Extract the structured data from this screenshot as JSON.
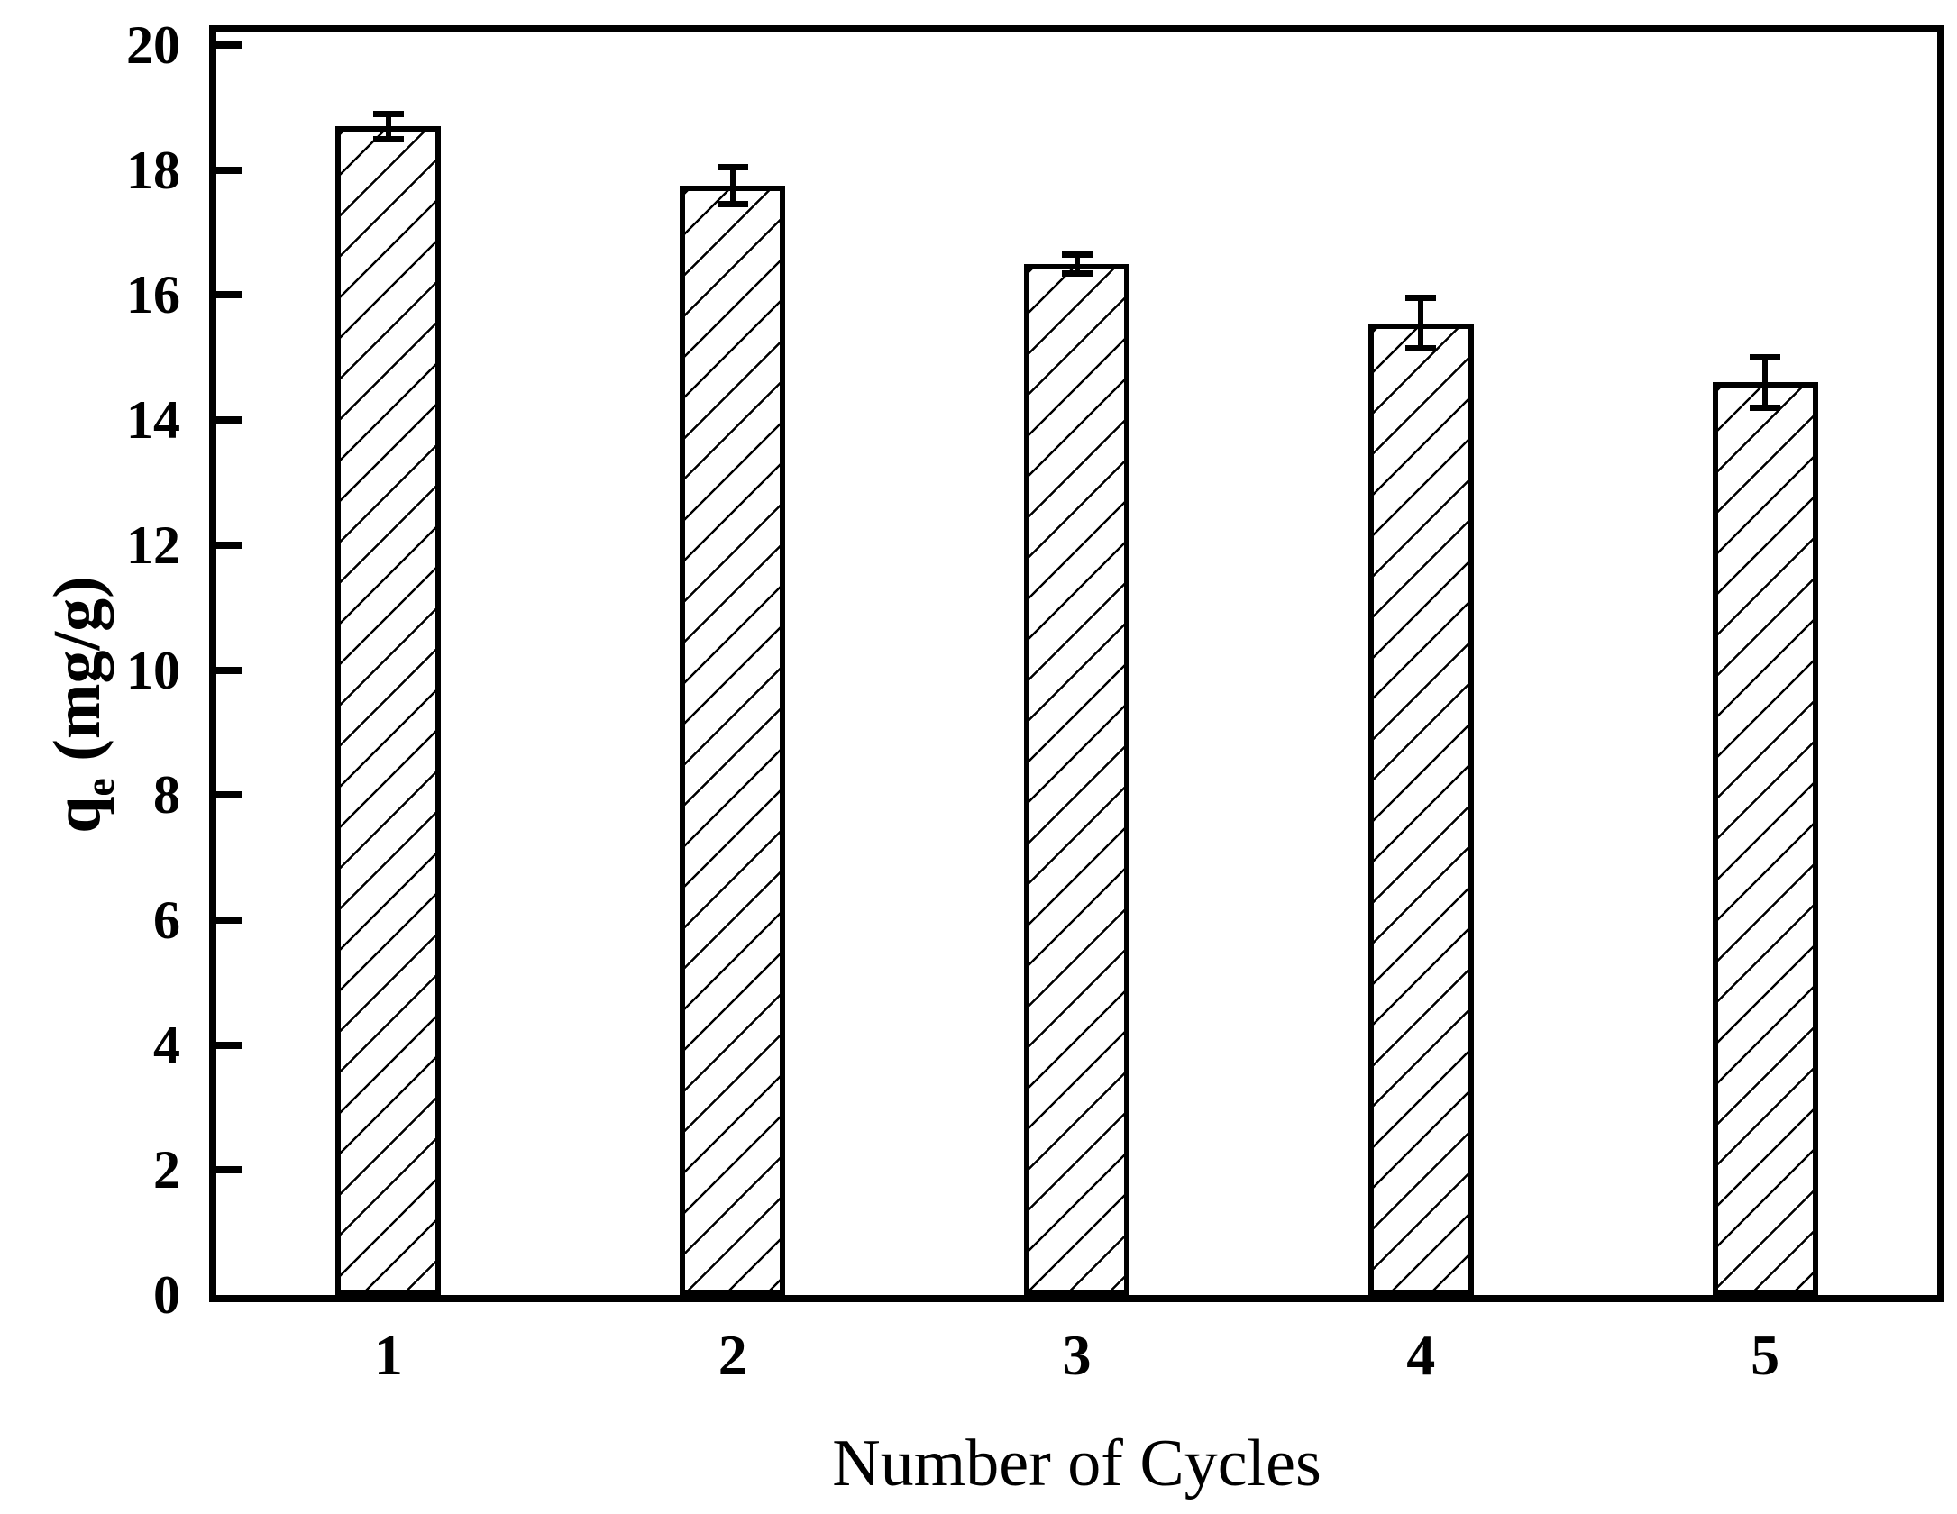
{
  "chart_data": {
    "type": "bar",
    "title": "",
    "xlabel": "Number of Cycles",
    "ylabel": {
      "base": "q",
      "subscript": "e",
      "units": "(mg/g)"
    },
    "categories": [
      "1",
      "2",
      "3",
      "4",
      "5"
    ],
    "values": [
      18.7,
      17.75,
      16.5,
      15.55,
      14.6
    ],
    "error_bars": [
      0.2,
      0.3,
      0.15,
      0.4,
      0.4
    ],
    "ylim": [
      0,
      20
    ],
    "ytick_step": 2,
    "yticks": [
      0,
      2,
      4,
      6,
      8,
      10,
      12,
      14,
      16,
      18,
      20
    ],
    "grid": false,
    "legend": "none",
    "bar_style": {
      "fill": "#ffffff",
      "hatch": "forward-slash-diagonal",
      "line_color": "#000000"
    },
    "colors": {
      "ink": "#000000",
      "background": "#ffffff"
    }
  }
}
